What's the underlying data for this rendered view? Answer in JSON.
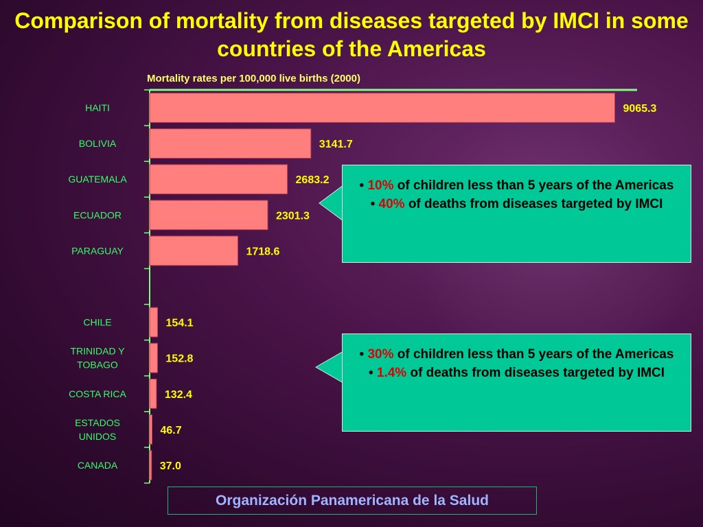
{
  "title": "Comparison of mortality from diseases targeted by IMCI in some countries of the Americas",
  "footer": "Organización Panamericana de la Salud",
  "colors": {
    "background": "#4a1448",
    "title": "#ffff00",
    "bar_fill": "#ff7f7f",
    "axis": "#80ff80",
    "callout_fill": "#00c896",
    "highlight": "#e00000"
  },
  "callouts": [
    {
      "stat1": "10%",
      "text1": "of children less than 5 years of the Americas",
      "stat2": "40%",
      "text2": "of deaths from diseases targeted by IMCI"
    },
    {
      "stat1": "30%",
      "text1": "of children less than 5 years of the Americas",
      "stat2": "1.4%",
      "text2": "of deaths from diseases targeted by IMCI"
    }
  ],
  "chart_data": {
    "type": "bar",
    "orientation": "horizontal",
    "title": "Mortality rates per 100,000 live births (2000)",
    "xlim": [
      0,
      9500
    ],
    "grid": false,
    "categories": [
      "HAITI",
      "BOLIVIA",
      "GUATEMALA",
      "ECUADOR",
      "PARAGUAY",
      "",
      "CHILE",
      "TRINIDAD Y TOBAGO",
      "COSTA RICA",
      "ESTADOS UNIDOS",
      "CANADA"
    ],
    "values": [
      9065.3,
      3141.7,
      2683.2,
      2301.3,
      1718.6,
      null,
      154.1,
      152.8,
      132.4,
      46.7,
      37.0
    ],
    "value_labels": [
      "9065.3",
      "3141.7",
      "2683.2",
      "2301.3",
      "1718.6",
      "",
      "154.1",
      "152.8",
      "132.4",
      "46.7",
      "37.0"
    ],
    "category_lines": [
      [
        "HAITI"
      ],
      [
        "BOLIVIA"
      ],
      [
        "GUATEMALA"
      ],
      [
        "ECUADOR"
      ],
      [
        "PARAGUAY"
      ],
      [],
      [
        "CHILE"
      ],
      [
        "TRINIDAD Y",
        "TOBAGO"
      ],
      [
        "COSTA RICA"
      ],
      [
        "ESTADOS",
        "UNIDOS"
      ],
      [
        "CANADA"
      ]
    ]
  }
}
